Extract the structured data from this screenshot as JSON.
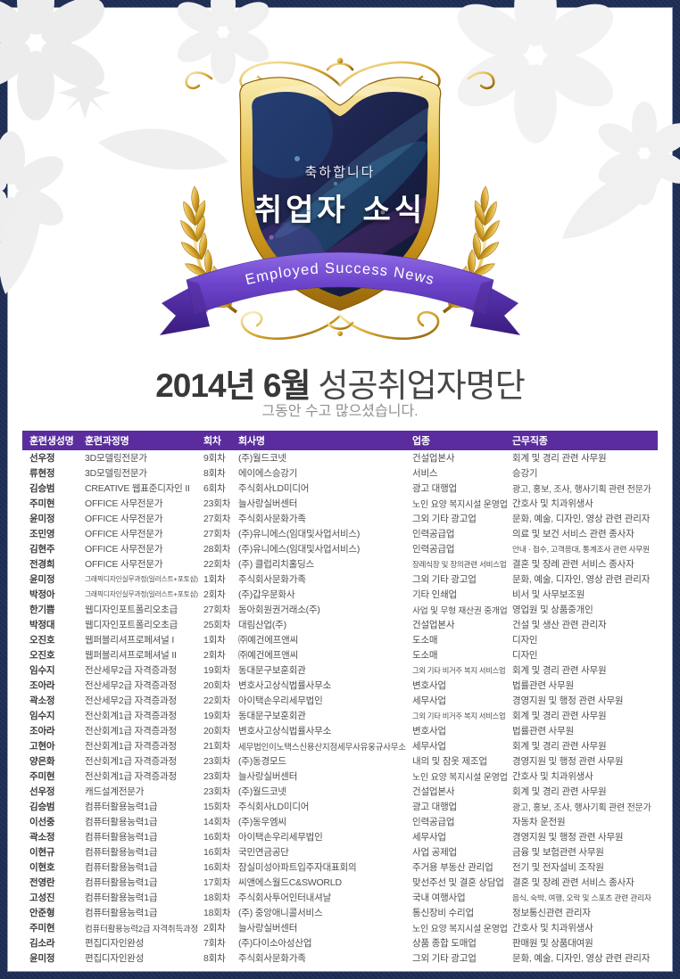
{
  "badge": {
    "congrats": "축하합니다",
    "main": "취업자 소식",
    "ribbon": "Employed Success News"
  },
  "title": {
    "bold": "2014년 6월",
    "rest": "성공취업자명단",
    "subtitle": "그동안 수고 많으셨습니다."
  },
  "colors": {
    "page_border_navy": "#1c2b52",
    "table_header_purple": "#5a2c9e",
    "gold": "#d9a82e",
    "ribbon_purple": "#6c44cc",
    "shield_panel_navy": "#1a2148"
  },
  "table": {
    "columns": [
      "훈련생성명",
      "훈련과정명",
      "회차",
      "회사명",
      "업종",
      "근무직종"
    ],
    "rows": [
      {
        "name": "선우정",
        "course": "3D모델링전문가",
        "session": "9회차",
        "company": "(주)월드코넷",
        "industry": "건설업본사",
        "job": "회계 및 경리 관련 사무원"
      },
      {
        "name": "류현정",
        "course": "3D모델링전문가",
        "session": "8회차",
        "company": "에이에스승강기",
        "industry": "서비스",
        "job": "승강기"
      },
      {
        "name": "김승범",
        "course": "CREATIVE 웹표준디자인 II",
        "session": "6회차",
        "company": "주식회사LD미디어",
        "industry": "광고 대행업",
        "job": "광고, 홍보, 조사, 행사기획 관련 전문가"
      },
      {
        "name": "주미현",
        "course": "OFFICE 사무전문가",
        "session": "23회차",
        "company": "늘사랑실버센터",
        "industry": "노인 요양 복지시설 운영업",
        "job": "간호사 및 치과위생사"
      },
      {
        "name": "윤미정",
        "course": "OFFICE 사무전문가",
        "session": "27회차",
        "company": "주식회사문화가족",
        "industry": "그외 기타 광고업",
        "job": "문화, 예술, 디자인, 영상 관련 관리자"
      },
      {
        "name": "조민영",
        "course": "OFFICE 사무전문가",
        "session": "27회차",
        "company": "(주)유니에스(임대및사업서비스)",
        "industry": "인력공급업",
        "job": "의료 및 보건 서비스 관련 종사자"
      },
      {
        "name": "김현주",
        "course": "OFFICE 사무전문가",
        "session": "28회차",
        "company": "(주)유니에스(임대및사업서비스)",
        "industry": "인력공급업",
        "job": "안내 · 접수, 고객응대, 통계조사 관련 사무원"
      },
      {
        "name": "전경희",
        "course": "OFFICE 사무전문가",
        "session": "22회차",
        "company": "(주) 클럽리치홀딩스",
        "industry": "장례식장 및 장의관련 서비스업",
        "job": "결혼 및 장례 관련 서비스 종사자"
      },
      {
        "name": "윤미정",
        "course": "그래픽디자인실무과정(일러스트+포토샵)",
        "session": "1회차",
        "company": "주식회사문화가족",
        "industry": "그외 기타 광고업",
        "job": "문화, 예술, 디자인, 영상 관련 관리자"
      },
      {
        "name": "박정아",
        "course": "그래픽디자인실무과정(일러스트+포토샵)",
        "session": "2회차",
        "company": "(주)갑우문화사",
        "industry": "기타 인쇄업",
        "job": "비서 및 사무보조원"
      },
      {
        "name": "한기쁨",
        "course": "웹디자인포트폴리오초급",
        "session": "27회차",
        "company": "동아회원권거래소(주)",
        "industry": "사업 및 무형 재산권 중개업",
        "job": "영업원 및 상품중개인"
      },
      {
        "name": "박정대",
        "course": "웹디자인포트폴리오초급",
        "session": "25회차",
        "company": "대림산업(주)",
        "industry": "건설업본사",
        "job": "건설 및 생산 관련 관리자"
      },
      {
        "name": "오진호",
        "course": "웹퍼블리셔프로페셔널 I",
        "session": "1회차",
        "company": "㈜예건에프앤씨",
        "industry": "도소매",
        "job": "디자인"
      },
      {
        "name": "오진호",
        "course": "웹퍼블리셔프로페셔널 II",
        "session": "2회차",
        "company": "㈜예건에프앤씨",
        "industry": "도소매",
        "job": "디자인"
      },
      {
        "name": "임수지",
        "course": "전산세무2급 자격증과정",
        "session": "19회차",
        "company": "동대문구보훈회관",
        "industry": "그외 기타 비거주 복지 서비스업",
        "job": "회계 및 경리 관련 사무원"
      },
      {
        "name": "조아라",
        "course": "전산세무2급 자격증과정",
        "session": "20회차",
        "company": "변호사고상식법률사무소",
        "industry": "변호사업",
        "job": "법률관련 사무원"
      },
      {
        "name": "곽소정",
        "course": "전산세무2급 자격증과정",
        "session": "22회차",
        "company": "아이택손우리세무법인",
        "industry": "세무사업",
        "job": "경영지원 및 행정 관련 사무원"
      },
      {
        "name": "임수지",
        "course": "전산회계1급 자격증과정",
        "session": "19회차",
        "company": "동대문구보훈회관",
        "industry": "그외 기타 비거주 복지 서비스업",
        "job": "회계 및 경리 관련 사무원"
      },
      {
        "name": "조아라",
        "course": "전산회계1급 자격증과정",
        "session": "20회차",
        "company": "변호사고상식법률사무소",
        "industry": "변호사업",
        "job": "법률관련 사무원"
      },
      {
        "name": "고현아",
        "course": "전산회계1급 자격증과정",
        "session": "21회차",
        "company": "세무법인이노택스신용산지점세무사유웅규사무소",
        "industry": "세무사업",
        "job": "회계 및 경리 관련 사무원"
      },
      {
        "name": "양은화",
        "course": "전산회계1급 자격증과정",
        "session": "23회차",
        "company": "(주)동경모드",
        "industry": "내의 및 잠옷 제조업",
        "job": "경영지원 및 행정 관련 사무원"
      },
      {
        "name": "주미현",
        "course": "전산회계1급 자격증과정",
        "session": "23회차",
        "company": "늘사랑실버센터",
        "industry": "노인 요양 복지시설 운영업",
        "job": "간호사 및 치과위생사"
      },
      {
        "name": "선우정",
        "course": "캐드설계전문가",
        "session": "23회차",
        "company": "(주)월드코넷",
        "industry": "건설업본사",
        "job": "회계 및 경리 관련 사무원"
      },
      {
        "name": "김승범",
        "course": "컴퓨터활용능력1급",
        "session": "15회차",
        "company": "주식회사LD미디어",
        "industry": "광고 대행업",
        "job": "광고, 홍보, 조사, 행사기획 관련 전문가"
      },
      {
        "name": "이선중",
        "course": "컴퓨터활용능력1급",
        "session": "14회차",
        "company": "(주)동우엠씨",
        "industry": "인력공급업",
        "job": "자동차 운전원"
      },
      {
        "name": "곽소정",
        "course": "컴퓨터활용능력1급",
        "session": "16회차",
        "company": "아이택손우리세무법인",
        "industry": "세무사업",
        "job": "경영지원 및 행정 관련 사무원"
      },
      {
        "name": "이현규",
        "course": "컴퓨터활용능력1급",
        "session": "16회차",
        "company": "국민연금공단",
        "industry": "사업 공제업",
        "job": "금융 및 보험관련 사무원"
      },
      {
        "name": "이현호",
        "course": "컴퓨터활용능력1급",
        "session": "16회차",
        "company": "잠실미성아파트입주자대표회의",
        "industry": "주거용 부동산 관리업",
        "job": "전기 및 전자설비 조작원"
      },
      {
        "name": "전영란",
        "course": "컴퓨터활용능력1급",
        "session": "17회차",
        "company": "씨앤에스월드C&SWORLD",
        "industry": "맞선주선 및 결혼 상담업",
        "job": "결혼 및 장례 관련 서비스 종사자"
      },
      {
        "name": "고성진",
        "course": "컴퓨터활용능력1급",
        "session": "18회차",
        "company": "주식회사투어인터내셔날",
        "industry": "국내 여행사업",
        "job": "음식, 숙박, 여행, 오락 및 스포츠 관련 관리자"
      },
      {
        "name": "안준형",
        "course": "컴퓨터활용능력1급",
        "session": "18회차",
        "company": "(주) 중앙애니콜서비스",
        "industry": "통신장비 수리업",
        "job": "정보통신관련 관리자"
      },
      {
        "name": "주미현",
        "course": "컴퓨터활용능력2급 자격취득과정",
        "session": "2회차",
        "company": "늘사랑실버센터",
        "industry": "노인 요양 복지시설 운영업",
        "job": "간호사 및 치과위생사"
      },
      {
        "name": "김소라",
        "course": "편집디자인완성",
        "session": "7회차",
        "company": "(주)다이소아성산업",
        "industry": "상품 종합 도매업",
        "job": "판매원 및 상품대여원"
      },
      {
        "name": "윤미정",
        "course": "편집디자인완성",
        "session": "8회차",
        "company": "주식회사문화가족",
        "industry": "그외 기타 광고업",
        "job": "문화, 예술, 디자인, 영상 관련 관리자"
      }
    ]
  }
}
